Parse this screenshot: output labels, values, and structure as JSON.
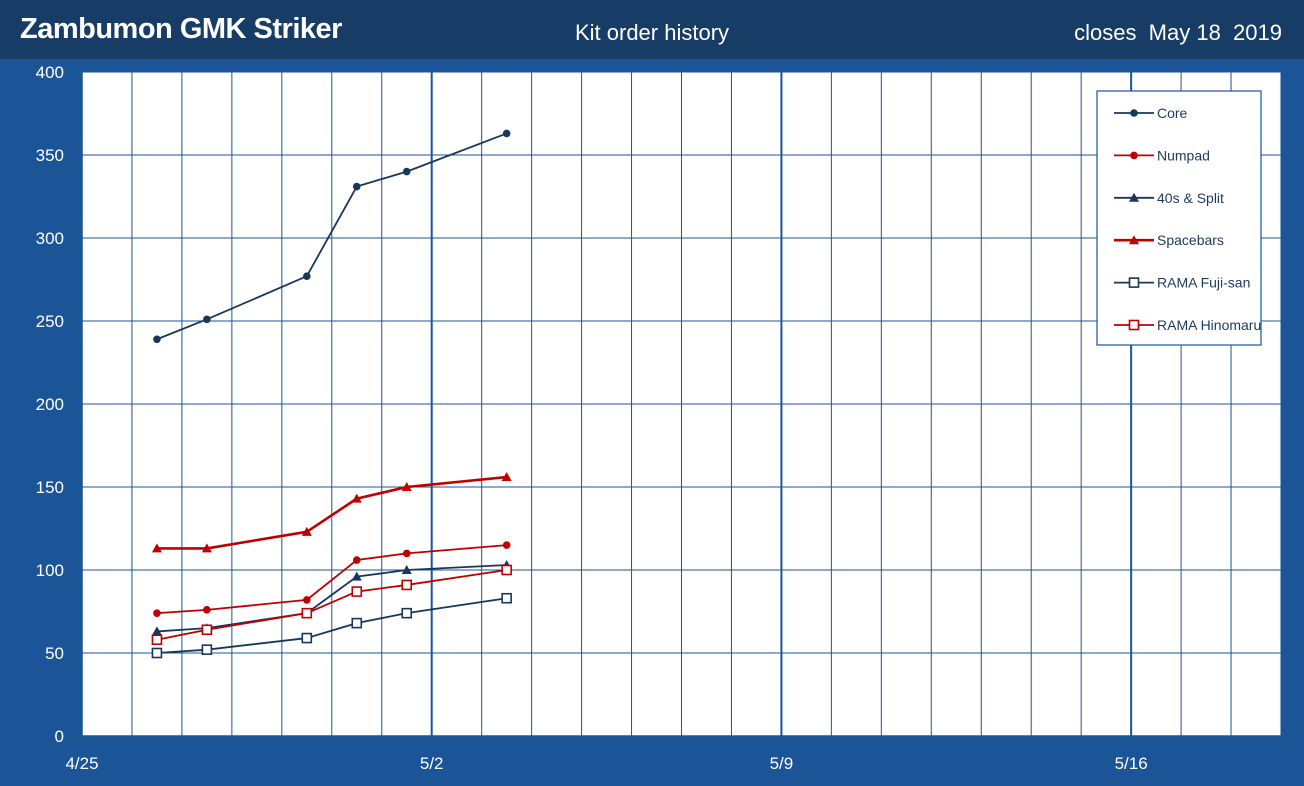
{
  "header": {
    "title": "Zambumon GMK Striker",
    "subtitle": "Kit order history",
    "closes": "closes  May 18  2019"
  },
  "colors": {
    "background": "#1b5597",
    "header": "#173c66",
    "plot": "#ffffff",
    "grid": "#1b5597",
    "navy": "#17375e",
    "red": "#c00000"
  },
  "chart_data": {
    "type": "line",
    "title": "Kit order history",
    "xlabel": "",
    "ylabel": "",
    "x_axis": {
      "type": "date",
      "start": "4/25",
      "end": "5/19",
      "tick_labels": [
        "4/25",
        "5/2",
        "5/9",
        "5/16"
      ],
      "major_every_days": 7,
      "minor_every_days": 1
    },
    "ylim": [
      0,
      400
    ],
    "yticks": [
      0,
      50,
      100,
      150,
      200,
      250,
      300,
      350,
      400
    ],
    "legend": "top-right",
    "grid": true,
    "series": [
      {
        "name": "Core",
        "color": "#17375e",
        "marker": "circle",
        "line_width": 1.8,
        "points": [
          [
            "4/26.5",
            239
          ],
          [
            "4/27.5",
            251
          ],
          [
            "4/29.5",
            277
          ],
          [
            "4/30.5",
            331
          ],
          [
            "5/1.5",
            340
          ],
          [
            "5/3.5",
            363
          ]
        ]
      },
      {
        "name": "Numpad",
        "color": "#c00000",
        "marker": "circle",
        "line_width": 1.8,
        "points": [
          [
            "4/26.5",
            74
          ],
          [
            "4/27.5",
            76
          ],
          [
            "4/29.5",
            82
          ],
          [
            "4/30.5",
            106
          ],
          [
            "5/1.5",
            110
          ],
          [
            "5/3.5",
            115
          ]
        ]
      },
      {
        "name": "40s & Split",
        "color": "#17375e",
        "marker": "triangle",
        "line_width": 1.8,
        "points": [
          [
            "4/26.5",
            63
          ],
          [
            "4/27.5",
            65
          ],
          [
            "4/29.5",
            74
          ],
          [
            "4/30.5",
            96
          ],
          [
            "5/1.5",
            100
          ],
          [
            "5/3.5",
            103
          ]
        ]
      },
      {
        "name": "Spacebars",
        "color": "#c00000",
        "marker": "triangle",
        "line_width": 2.6,
        "points": [
          [
            "4/26.5",
            113
          ],
          [
            "4/27.5",
            113
          ],
          [
            "4/29.5",
            123
          ],
          [
            "4/30.5",
            143
          ],
          [
            "5/1.5",
            150
          ],
          [
            "5/3.5",
            156
          ]
        ]
      },
      {
        "name": "RAMA Fuji-san",
        "color": "#17375e",
        "marker": "square",
        "line_width": 1.8,
        "points": [
          [
            "4/26.5",
            50
          ],
          [
            "4/27.5",
            52
          ],
          [
            "4/29.5",
            59
          ],
          [
            "4/30.5",
            68
          ],
          [
            "5/1.5",
            74
          ],
          [
            "5/3.5",
            83
          ]
        ]
      },
      {
        "name": "RAMA Hinomaru",
        "color": "#c00000",
        "marker": "square",
        "line_width": 1.8,
        "points": [
          [
            "4/26.5",
            58
          ],
          [
            "4/27.5",
            64
          ],
          [
            "4/29.5",
            74
          ],
          [
            "4/30.5",
            87
          ],
          [
            "5/1.5",
            91
          ],
          [
            "5/3.5",
            100
          ]
        ]
      }
    ]
  }
}
